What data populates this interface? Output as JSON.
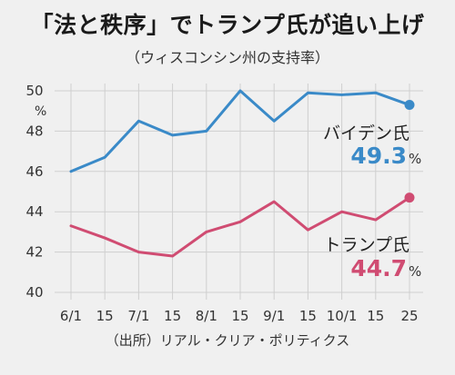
{
  "title": "「法と秩序」でトランプ氏が追い上げ",
  "subtitle": "（ウィスコンシン州の支持率）",
  "source": "（出所）リアル・クリア・ポリティクス",
  "chart_data": {
    "type": "line",
    "x": [
      "6/1",
      "15",
      "7/1",
      "15",
      "8/1",
      "15",
      "9/1",
      "15",
      "10/1",
      "15",
      "25"
    ],
    "y_unit": "%",
    "ylim": [
      40,
      50
    ],
    "yticks": [
      40,
      42,
      44,
      46,
      48,
      50
    ],
    "grid": true,
    "series": [
      {
        "name": "バイデン氏",
        "color": "#3a8ac8",
        "values": [
          46.0,
          46.7,
          48.5,
          47.8,
          48.0,
          50.0,
          48.5,
          49.9,
          49.8,
          49.9,
          49.3
        ],
        "end_label": "49.3",
        "end_unit": "%"
      },
      {
        "name": "トランプ氏",
        "color": "#d04c72",
        "values": [
          43.3,
          42.7,
          42.0,
          41.8,
          43.0,
          43.5,
          44.5,
          43.1,
          44.0,
          43.6,
          44.7
        ],
        "end_label": "44.7",
        "end_unit": "%"
      }
    ]
  }
}
